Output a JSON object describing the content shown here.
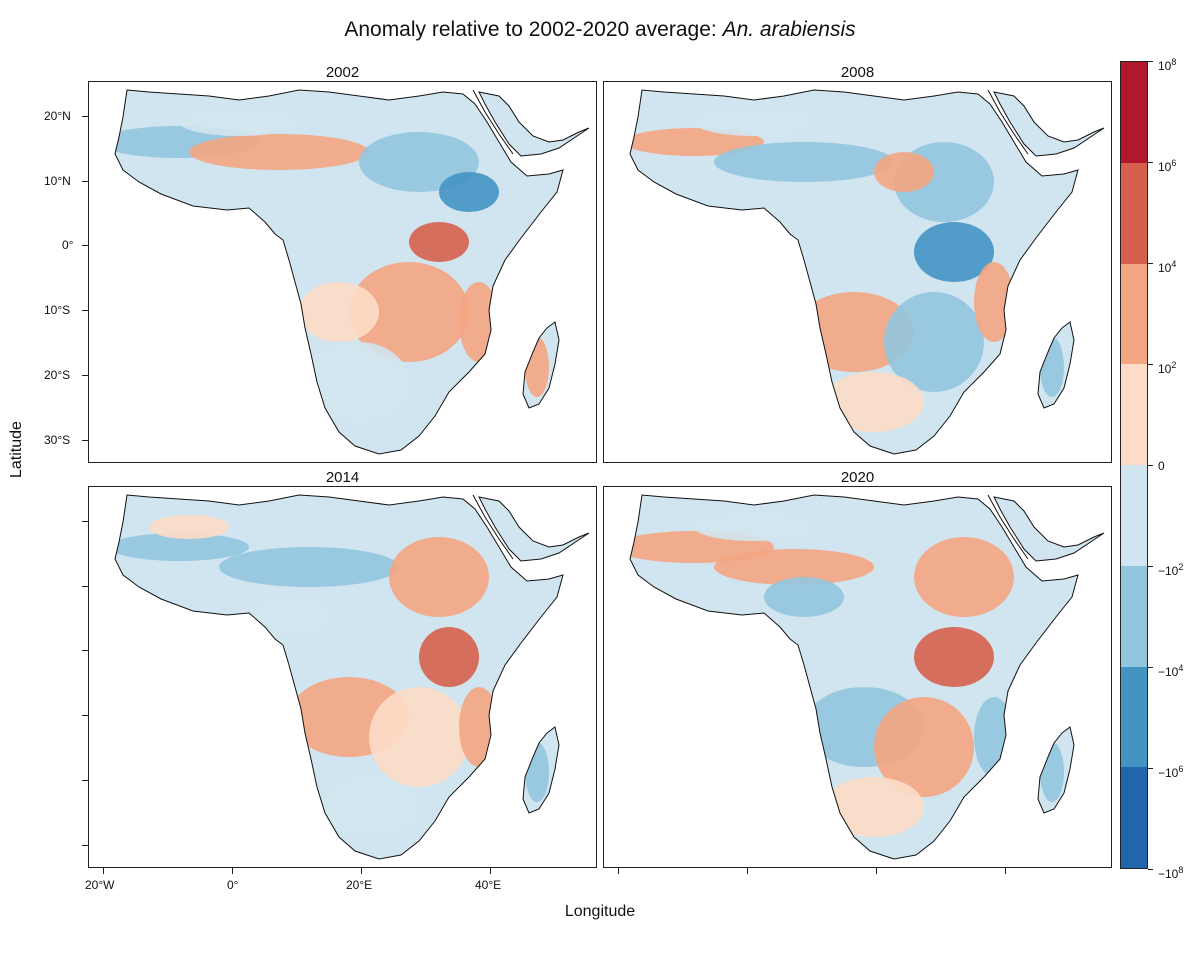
{
  "title": {
    "prefix": "Anomaly relative to 2002-2020 average: ",
    "species": "An. arabiensis"
  },
  "xlabel": "Longitude",
  "ylabel": "Latitude",
  "panels": [
    "2002",
    "2008",
    "2014",
    "2020"
  ],
  "lat_ticks": [
    "20°N",
    "10°N",
    "0°",
    "10°S",
    "20°S",
    "30°S"
  ],
  "lon_ticks": [
    "20°W",
    "0°",
    "20°E",
    "40°E"
  ],
  "legend": {
    "colors": [
      "#b2182b",
      "#d6604d",
      "#f4a582",
      "#fddbc7",
      "#d1e5f0",
      "#92c5de",
      "#4393c3",
      "#2166ac"
    ],
    "labels": [
      {
        "base": "10",
        "exp": "8"
      },
      {
        "base": "10",
        "exp": "6"
      },
      {
        "base": "10",
        "exp": "4"
      },
      {
        "base": "10",
        "exp": "2"
      },
      {
        "base": "0",
        "exp": ""
      },
      {
        "base": "−10",
        "exp": "2"
      },
      {
        "base": "−10",
        "exp": "4"
      },
      {
        "base": "−10",
        "exp": "6"
      },
      {
        "base": "−10",
        "exp": "8"
      }
    ]
  }
}
